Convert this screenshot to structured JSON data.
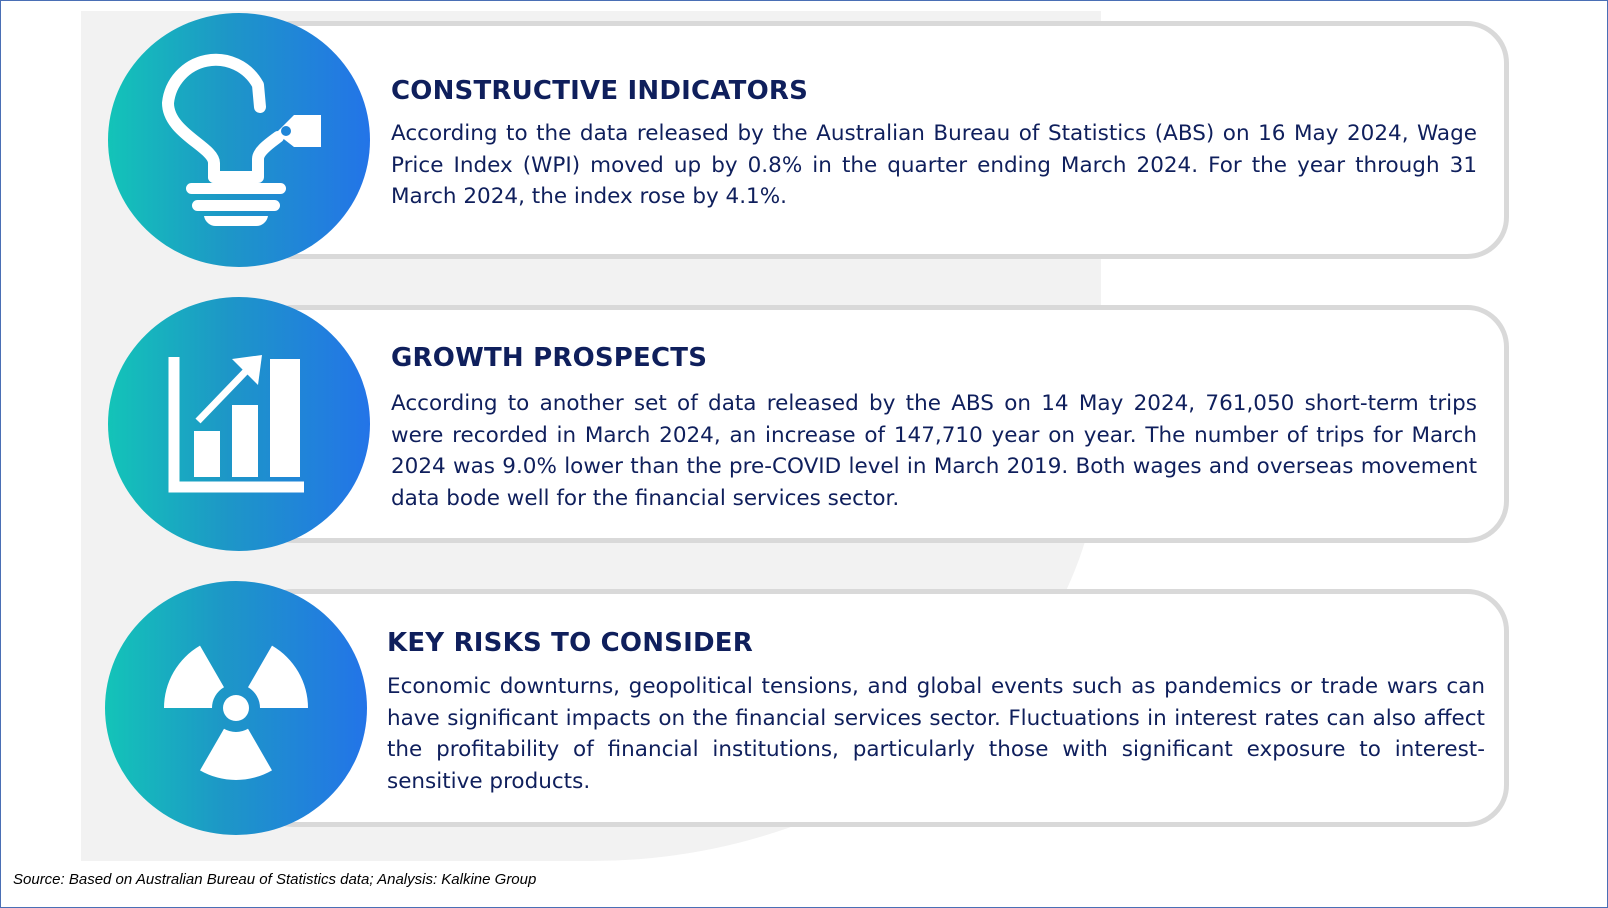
{
  "sections": [
    {
      "title": "CONSTRUCTIVE INDICATORS",
      "body": "According to the data released by the Australian Bureau of Statistics (ABS) on 16 May 2024, Wage Price Index (WPI) moved up by 0.8% in the quarter ending March 2024. For the year through 31 March 2024, the index rose by 4.1%.",
      "icon": "lightbulb-icon"
    },
    {
      "title": "GROWTH PROSPECTS",
      "body": "According to another set of data released by the ABS on 14 May 2024, 761,050 short-term trips were recorded in March 2024, an increase of 147,710 year on year. The number of trips for March 2024 was 9.0% lower than the pre-COVID level in March 2019. Both wages and overseas movement data bode well for the financial services sector.",
      "icon": "growth-chart-icon"
    },
    {
      "title": "KEY RISKS TO CONSIDER",
      "body": "Economic downturns, geopolitical tensions, and global events such as pandemics or trade wars can have significant impacts on the financial services sector. Fluctuations in interest rates can also affect the profitability of financial institutions, particularly those with significant exposure to interest-sensitive products.",
      "icon": "radiation-hazard-icon"
    }
  ],
  "source": "Source: Based on Australian Bureau of Statistics data; Analysis: Kalkine Group",
  "colors": {
    "title": "#0f1f5c",
    "panel_border": "#d9d9d9",
    "gradient_start": "#13c4b8",
    "gradient_end": "#2374e8",
    "frame_border": "#4a6fb5"
  }
}
